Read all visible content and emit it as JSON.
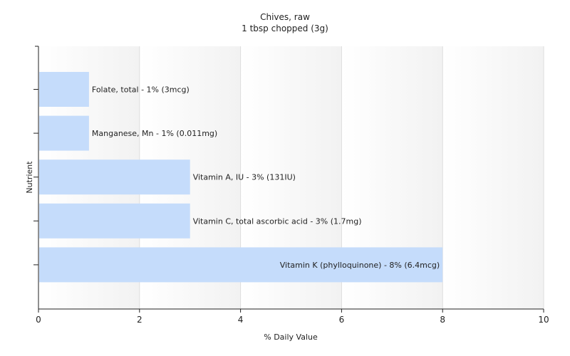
{
  "chart_data": {
    "type": "bar",
    "orientation": "horizontal",
    "title": "Chives, raw",
    "subtitle": "1 tbsp chopped (3g)",
    "xlabel": "% Daily Value",
    "ylabel": "Nutrient",
    "xlim": [
      0,
      10
    ],
    "xticks": [
      0,
      2,
      4,
      6,
      8,
      10
    ],
    "grid": true,
    "categories": [
      "Folate, total",
      "Manganese, Mn",
      "Vitamin A, IU",
      "Vitamin C, total ascorbic acid",
      "Vitamin K (phylloquinone)"
    ],
    "values": [
      1,
      1,
      3,
      3,
      8
    ],
    "labels": [
      "Folate, total - 1% (3mcg)",
      "Manganese, Mn - 1% (0.011mg)",
      "Vitamin A, IU - 3% (131IU)",
      "Vitamin C, total ascorbic acid - 3% (1.7mg)",
      "Vitamin K (phylloquinone) - 8% (6.4mcg)"
    ],
    "colors": {
      "bar": "#c5dcfb",
      "axis": "#222222",
      "grid": "#dddddd",
      "band_start": "#ffffff",
      "band_end": "#f2f2f2"
    }
  }
}
